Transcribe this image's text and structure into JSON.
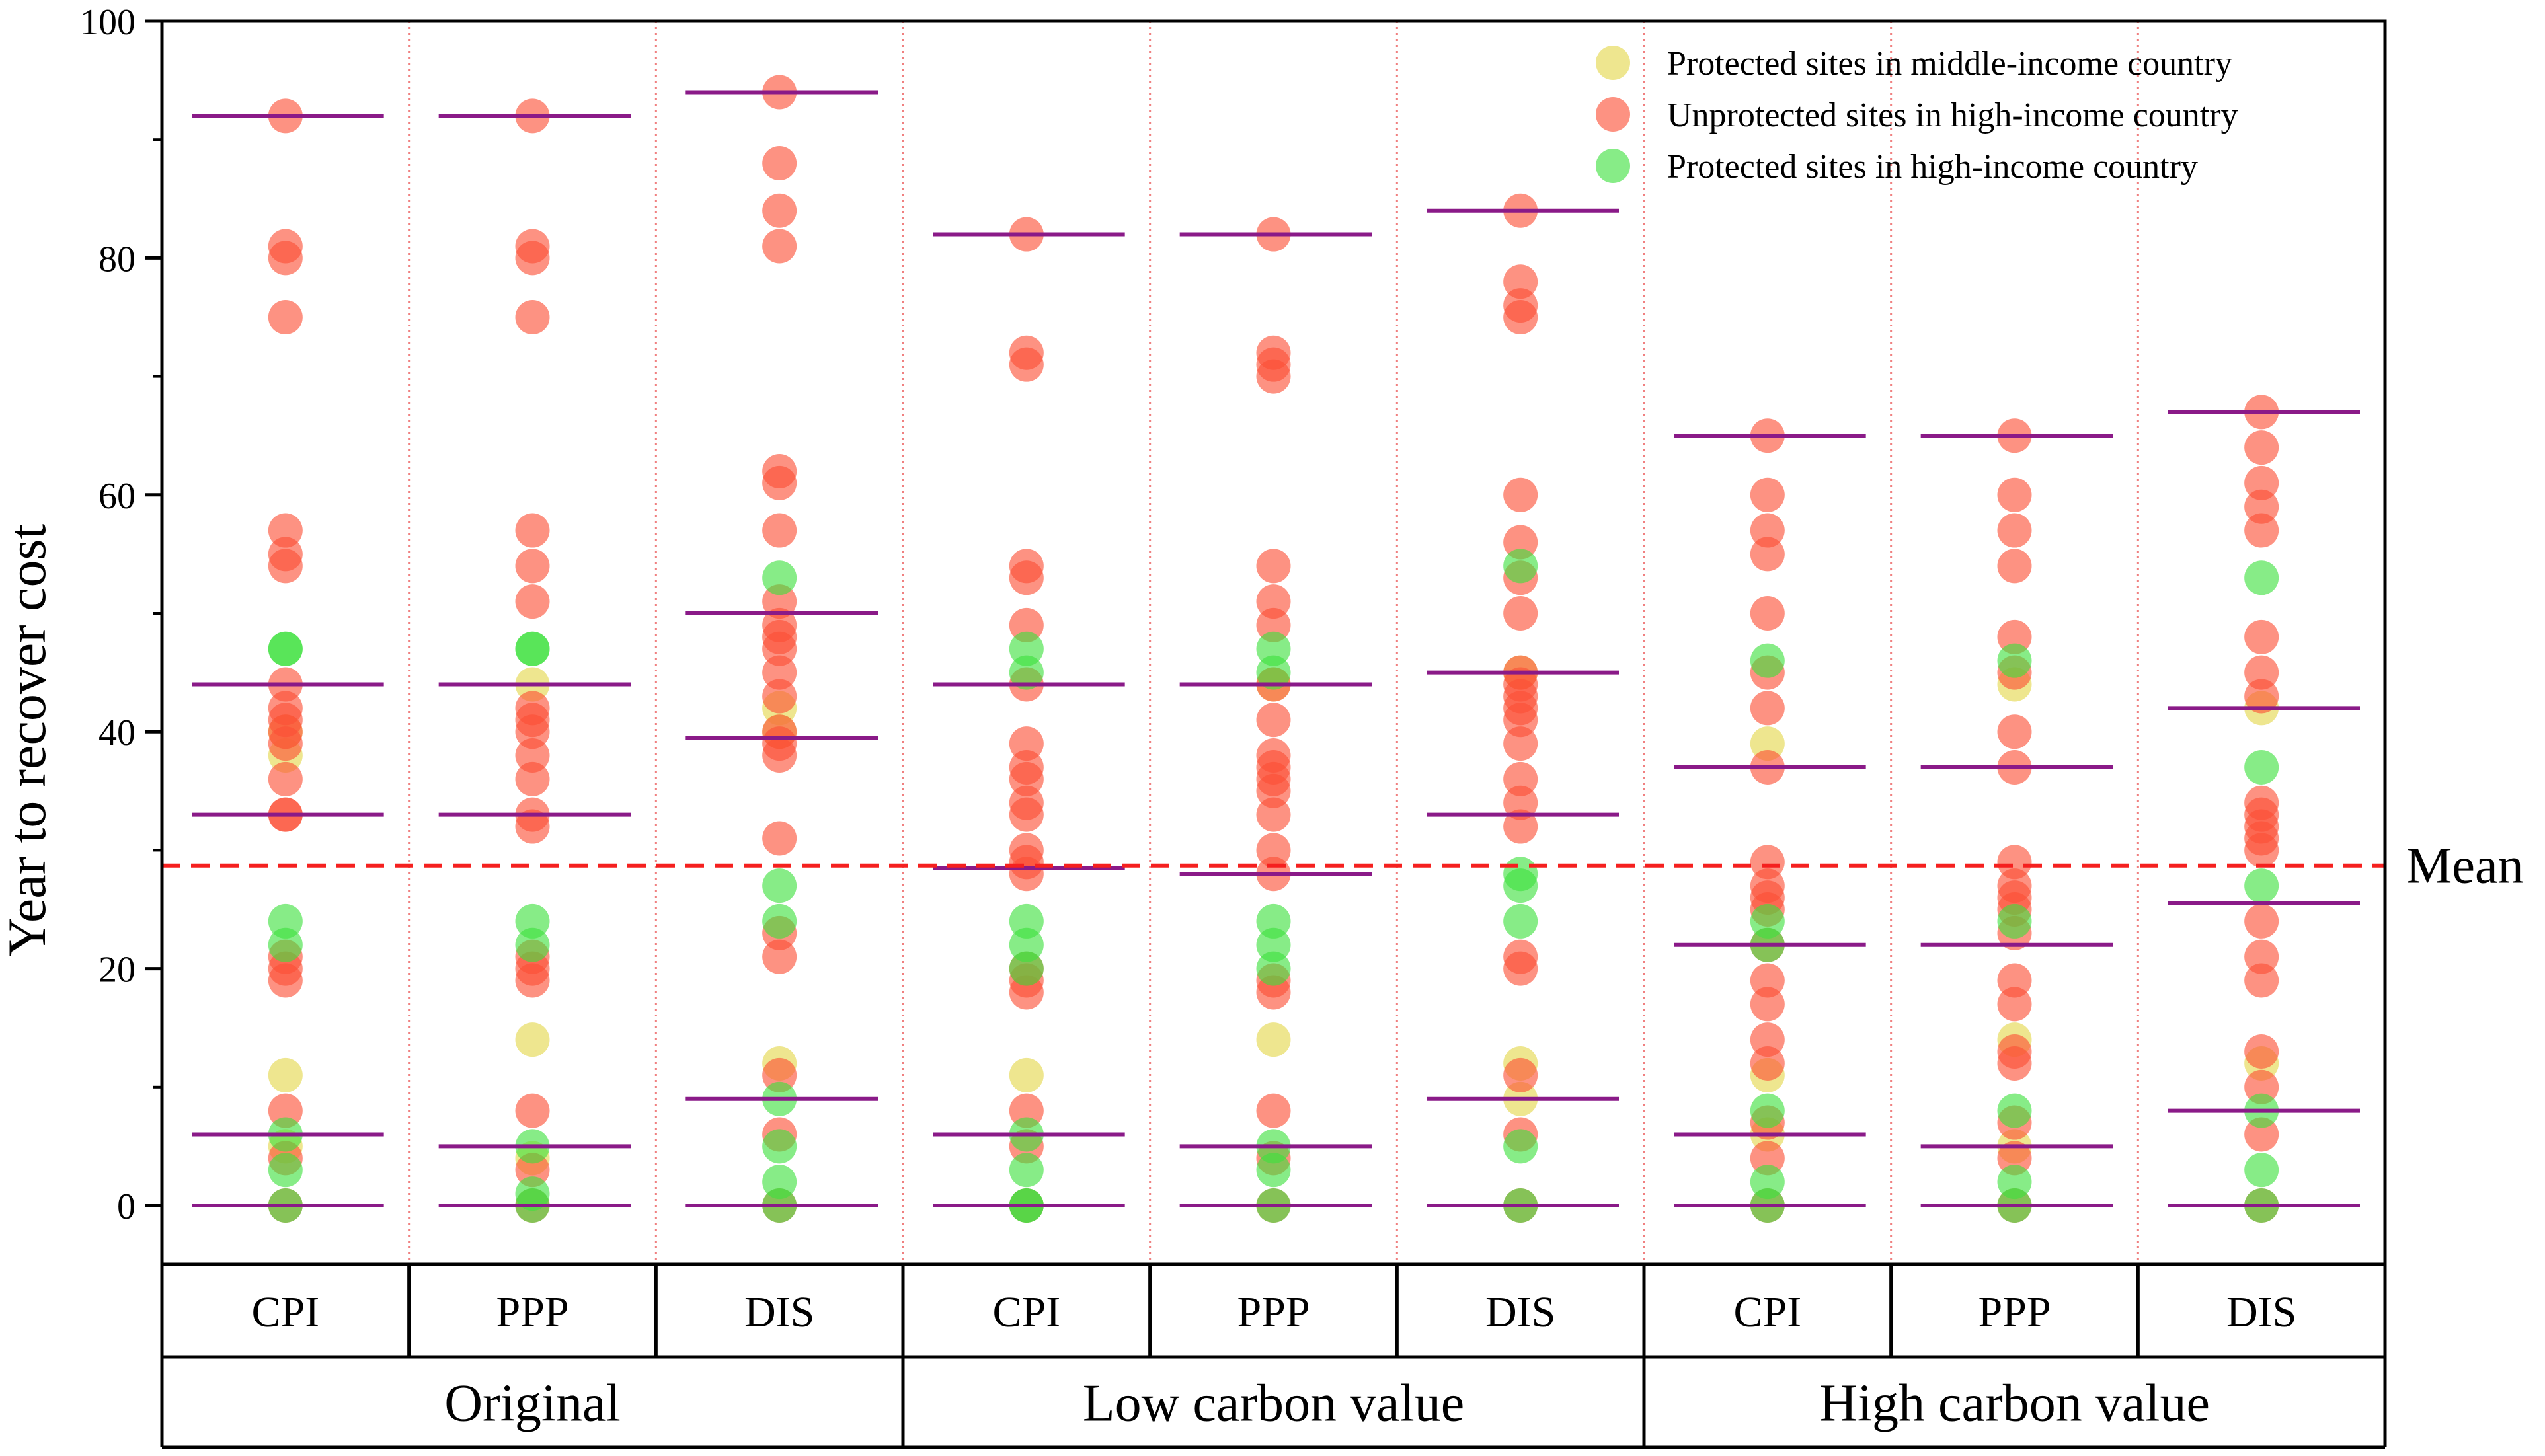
{
  "chart_data": {
    "type": "scatter",
    "title": "",
    "ylabel": "Year to recover cost",
    "xlabel": "",
    "ylim": [
      0,
      100
    ],
    "yticks": [
      0,
      20,
      40,
      60,
      80,
      100
    ],
    "mean": {
      "label": "Mean",
      "value": 28.7
    },
    "groups": [
      "Original",
      "Low carbon value",
      "High carbon value"
    ],
    "legend": [
      {
        "key": "pm",
        "label": "Protected sites in middle-income country",
        "color": "#e3d64b"
      },
      {
        "key": "uh",
        "label": "Unprotected sites in high-income country",
        "color": "#fb4f36"
      },
      {
        "key": "ph",
        "label": "Protected sites in high-income country",
        "color": "#3de03d"
      }
    ],
    "boxline_color": "#8a1a88",
    "mean_color": "#f5201f",
    "columns": [
      {
        "group": 0,
        "method": "CPI",
        "lines": [
          0,
          6,
          33,
          44,
          92
        ],
        "uh": [
          92,
          81,
          80,
          75,
          57,
          55,
          54,
          44,
          42,
          41,
          40,
          39,
          36,
          33,
          33,
          21,
          20,
          19,
          8,
          4,
          0
        ],
        "ph": [
          47,
          47,
          24,
          22,
          6,
          3,
          0
        ],
        "pm": [
          40,
          38,
          11,
          5
        ]
      },
      {
        "group": 0,
        "method": "PPP",
        "lines": [
          0,
          5,
          33,
          44,
          92
        ],
        "uh": [
          92,
          81,
          80,
          75,
          57,
          54,
          51,
          42,
          41,
          40,
          38,
          36,
          33,
          32,
          21,
          20,
          19,
          8,
          3,
          0
        ],
        "ph": [
          47,
          47,
          24,
          22,
          5,
          1,
          0
        ],
        "pm": [
          44,
          14,
          4
        ]
      },
      {
        "group": 0,
        "method": "DIS",
        "lines": [
          0,
          9,
          39.5,
          50,
          94
        ],
        "uh": [
          94,
          88,
          84,
          81,
          62,
          61,
          57,
          51,
          49,
          48,
          47,
          45,
          43,
          40,
          39,
          38,
          31,
          23,
          21,
          11,
          6,
          0
        ],
        "ph": [
          53,
          27,
          24,
          9,
          5,
          2,
          0
        ],
        "pm": [
          42,
          40,
          12
        ]
      },
      {
        "group": 1,
        "method": "CPI",
        "lines": [
          0,
          6,
          28.5,
          44,
          82
        ],
        "uh": [
          82,
          72,
          71,
          54,
          53,
          49,
          44,
          39,
          37,
          36,
          34,
          33,
          30,
          29,
          28,
          20,
          19,
          18,
          8,
          5,
          0
        ],
        "ph": [
          47,
          45,
          24,
          22,
          20,
          6,
          3,
          0,
          0
        ],
        "pm": [
          11
        ]
      },
      {
        "group": 1,
        "method": "PPP",
        "lines": [
          0,
          5,
          28,
          44,
          82
        ],
        "uh": [
          82,
          72,
          71,
          70,
          54,
          51,
          49,
          44,
          41,
          38,
          37,
          36,
          35,
          33,
          30,
          28,
          19,
          18,
          8,
          4,
          0
        ],
        "ph": [
          47,
          45,
          24,
          22,
          20,
          5,
          3,
          0
        ],
        "pm": [
          44,
          14
        ]
      },
      {
        "group": 1,
        "method": "DIS",
        "lines": [
          0,
          9,
          33,
          45,
          84
        ],
        "uh": [
          84,
          78,
          76,
          75,
          60,
          56,
          53,
          50,
          45,
          44,
          43,
          42,
          41,
          39,
          36,
          34,
          32,
          21,
          20,
          11,
          6,
          0
        ],
        "ph": [
          54,
          28,
          27,
          24,
          5,
          0
        ],
        "pm": [
          45,
          12,
          9
        ]
      },
      {
        "group": 2,
        "method": "CPI",
        "lines": [
          0,
          6,
          22,
          37,
          65
        ],
        "uh": [
          65,
          60,
          57,
          55,
          50,
          45,
          42,
          37,
          29,
          27,
          26,
          25,
          22,
          19,
          17,
          14,
          12,
          7,
          4,
          0
        ],
        "ph": [
          46,
          24,
          22,
          8,
          2,
          0
        ],
        "pm": [
          39,
          11,
          6
        ]
      },
      {
        "group": 2,
        "method": "PPP",
        "lines": [
          0,
          5,
          22,
          37,
          65
        ],
        "uh": [
          65,
          60,
          57,
          54,
          48,
          45,
          40,
          37,
          29,
          27,
          26,
          25,
          23,
          19,
          17,
          13,
          12,
          7,
          4,
          0
        ],
        "ph": [
          46,
          24,
          8,
          2,
          0
        ],
        "pm": [
          44,
          14,
          5
        ]
      },
      {
        "group": 2,
        "method": "DIS",
        "lines": [
          0,
          8,
          25.5,
          42,
          67
        ],
        "uh": [
          67,
          64,
          61,
          59,
          57,
          48,
          45,
          43,
          34,
          33,
          32,
          31,
          30,
          24,
          21,
          19,
          13,
          10,
          6,
          0
        ],
        "ph": [
          53,
          37,
          27,
          8,
          3,
          0
        ],
        "pm": [
          42,
          12
        ]
      }
    ]
  }
}
